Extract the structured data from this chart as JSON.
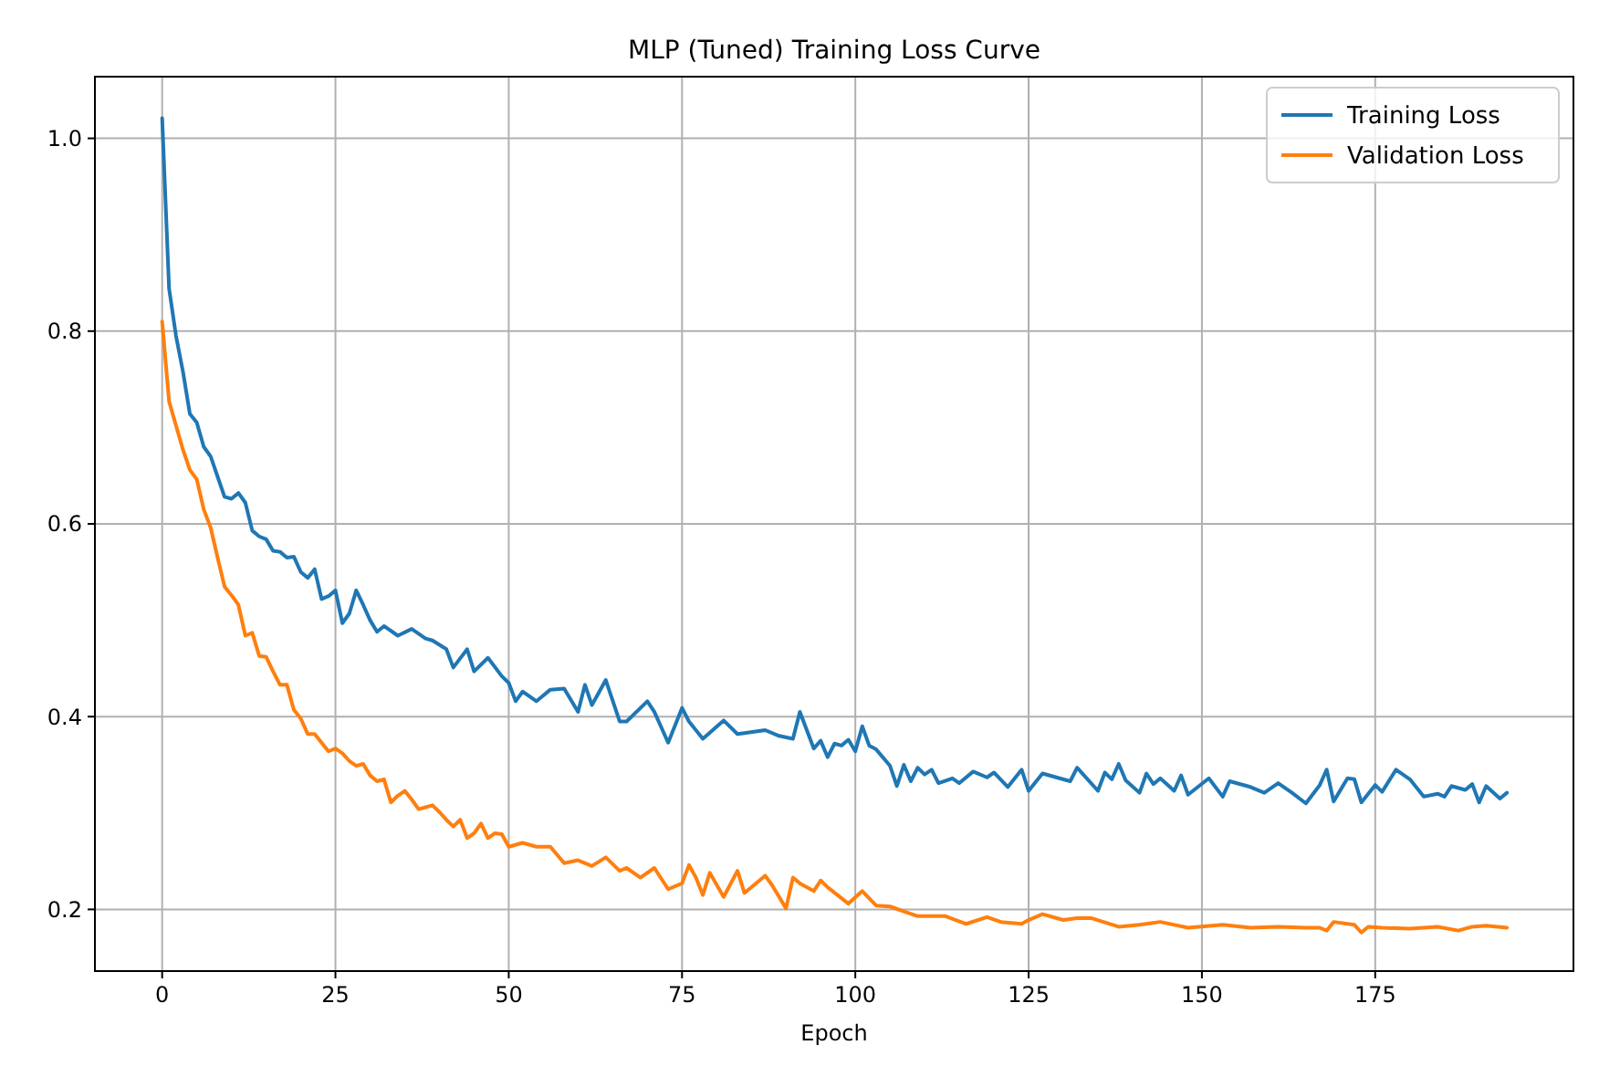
{
  "chart_data": {
    "type": "line",
    "title": "MLP (Tuned) Training Loss Curve",
    "xlabel": "Epoch",
    "xlim": [
      -9.7,
      203.6
    ],
    "ylim": [
      0.136,
      1.064
    ],
    "xticks": [
      0,
      25,
      50,
      75,
      100,
      125,
      150,
      175
    ],
    "yticks": [
      {
        "value": 0.2,
        "label": "0.2"
      },
      {
        "value": 0.4,
        "label": "0.4"
      },
      {
        "value": 0.6,
        "label": "0.6"
      },
      {
        "value": 0.8,
        "label": "0.8"
      },
      {
        "value": 1.0,
        "label": "1.0"
      }
    ],
    "grid": true,
    "legend": "top right",
    "marker": "none",
    "line_style": "solid",
    "series": [
      {
        "name": "Training Loss",
        "color": "#1f77b4",
        "x": [
          0,
          1,
          2,
          3,
          4,
          5,
          6,
          7,
          8,
          9,
          10,
          11,
          12,
          13,
          14,
          15,
          16,
          17,
          18,
          19,
          20,
          21,
          22,
          23,
          24,
          25,
          26,
          27,
          28,
          29,
          30,
          31,
          32,
          34,
          36,
          38,
          39,
          41,
          42,
          44,
          45,
          47,
          49,
          50,
          51,
          52,
          54,
          56,
          58,
          60,
          61,
          62,
          64,
          66,
          67,
          70,
          71,
          73,
          75,
          76,
          78,
          81,
          83,
          84,
          87,
          89,
          91,
          92,
          94,
          95,
          96,
          97,
          98,
          99,
          100,
          101,
          102,
          103,
          105,
          106,
          107,
          108,
          109,
          110,
          111,
          112,
          114,
          115,
          117,
          119,
          120,
          122,
          124,
          125,
          127,
          131,
          132,
          135,
          136,
          137,
          138,
          139,
          141,
          142,
          143,
          144,
          146,
          147,
          148,
          151,
          153,
          154,
          157,
          159,
          161,
          163,
          165,
          167,
          168,
          169,
          171,
          172,
          173,
          175,
          176,
          178,
          180,
          182,
          184,
          185,
          186,
          188,
          189,
          190,
          191,
          193,
          194
        ],
        "values": [
          1.021,
          0.844,
          0.795,
          0.758,
          0.714,
          0.705,
          0.68,
          0.67,
          0.649,
          0.628,
          0.626,
          0.632,
          0.622,
          0.593,
          0.587,
          0.584,
          0.572,
          0.571,
          0.565,
          0.566,
          0.55,
          0.544,
          0.553,
          0.522,
          0.525,
          0.531,
          0.497,
          0.507,
          0.531,
          0.516,
          0.5,
          0.488,
          0.494,
          0.484,
          0.491,
          0.481,
          0.479,
          0.47,
          0.451,
          0.47,
          0.447,
          0.461,
          0.442,
          0.435,
          0.416,
          0.426,
          0.416,
          0.428,
          0.429,
          0.405,
          0.433,
          0.412,
          0.438,
          0.395,
          0.395,
          0.416,
          0.405,
          0.373,
          0.409,
          0.395,
          0.377,
          0.396,
          0.382,
          0.383,
          0.386,
          0.38,
          0.377,
          0.405,
          0.367,
          0.375,
          0.358,
          0.372,
          0.37,
          0.376,
          0.364,
          0.39,
          0.37,
          0.366,
          0.349,
          0.328,
          0.35,
          0.333,
          0.347,
          0.34,
          0.345,
          0.331,
          0.336,
          0.331,
          0.343,
          0.337,
          0.342,
          0.327,
          0.345,
          0.323,
          0.341,
          0.333,
          0.347,
          0.323,
          0.342,
          0.335,
          0.351,
          0.334,
          0.321,
          0.341,
          0.33,
          0.336,
          0.323,
          0.339,
          0.319,
          0.336,
          0.317,
          0.333,
          0.327,
          0.321,
          0.331,
          0.321,
          0.31,
          0.329,
          0.345,
          0.312,
          0.336,
          0.335,
          0.311,
          0.329,
          0.322,
          0.345,
          0.335,
          0.317,
          0.32,
          0.317,
          0.328,
          0.324,
          0.33,
          0.311,
          0.328,
          0.315,
          0.321
        ]
      },
      {
        "name": "Validation Loss",
        "color": "#ff7f0e",
        "x": [
          0,
          1,
          2,
          3,
          4,
          5,
          6,
          7,
          8,
          9,
          10,
          11,
          12,
          13,
          14,
          15,
          16,
          17,
          18,
          19,
          20,
          21,
          22,
          23,
          24,
          25,
          26,
          27,
          28,
          29,
          30,
          31,
          32,
          33,
          34,
          35,
          36,
          37,
          38,
          39,
          40,
          41,
          42,
          43,
          44,
          45,
          46,
          47,
          48,
          49,
          50,
          52,
          54,
          56,
          58,
          60,
          62,
          64,
          66,
          67,
          69,
          71,
          73,
          75,
          76,
          77,
          78,
          79,
          81,
          83,
          84,
          87,
          88,
          90,
          91,
          92,
          94,
          95,
          96,
          99,
          101,
          103,
          105,
          107,
          109,
          113,
          116,
          119,
          121,
          124,
          125,
          127,
          130,
          132,
          134,
          138,
          141,
          144,
          148,
          153,
          157,
          161,
          165,
          167,
          168,
          169,
          172,
          173,
          174,
          176,
          180,
          184,
          187,
          189,
          191,
          194
        ],
        "values": [
          0.81,
          0.727,
          0.702,
          0.677,
          0.656,
          0.646,
          0.615,
          0.596,
          0.565,
          0.535,
          0.526,
          0.516,
          0.484,
          0.487,
          0.463,
          0.462,
          0.447,
          0.433,
          0.433,
          0.407,
          0.398,
          0.382,
          0.382,
          0.373,
          0.364,
          0.367,
          0.362,
          0.354,
          0.349,
          0.351,
          0.339,
          0.333,
          0.335,
          0.311,
          0.318,
          0.323,
          0.314,
          0.304,
          0.306,
          0.308,
          0.301,
          0.293,
          0.286,
          0.293,
          0.274,
          0.279,
          0.289,
          0.274,
          0.279,
          0.278,
          0.265,
          0.269,
          0.265,
          0.265,
          0.248,
          0.251,
          0.245,
          0.254,
          0.24,
          0.243,
          0.233,
          0.243,
          0.221,
          0.227,
          0.246,
          0.233,
          0.215,
          0.238,
          0.213,
          0.24,
          0.217,
          0.235,
          0.225,
          0.201,
          0.233,
          0.227,
          0.219,
          0.23,
          0.223,
          0.206,
          0.219,
          0.204,
          0.203,
          0.198,
          0.193,
          0.193,
          0.185,
          0.192,
          0.187,
          0.185,
          0.189,
          0.195,
          0.189,
          0.191,
          0.191,
          0.182,
          0.184,
          0.187,
          0.181,
          0.184,
          0.181,
          0.182,
          0.181,
          0.181,
          0.178,
          0.187,
          0.184,
          0.176,
          0.182,
          0.181,
          0.18,
          0.182,
          0.178,
          0.182,
          0.183,
          0.181
        ]
      }
    ]
  }
}
